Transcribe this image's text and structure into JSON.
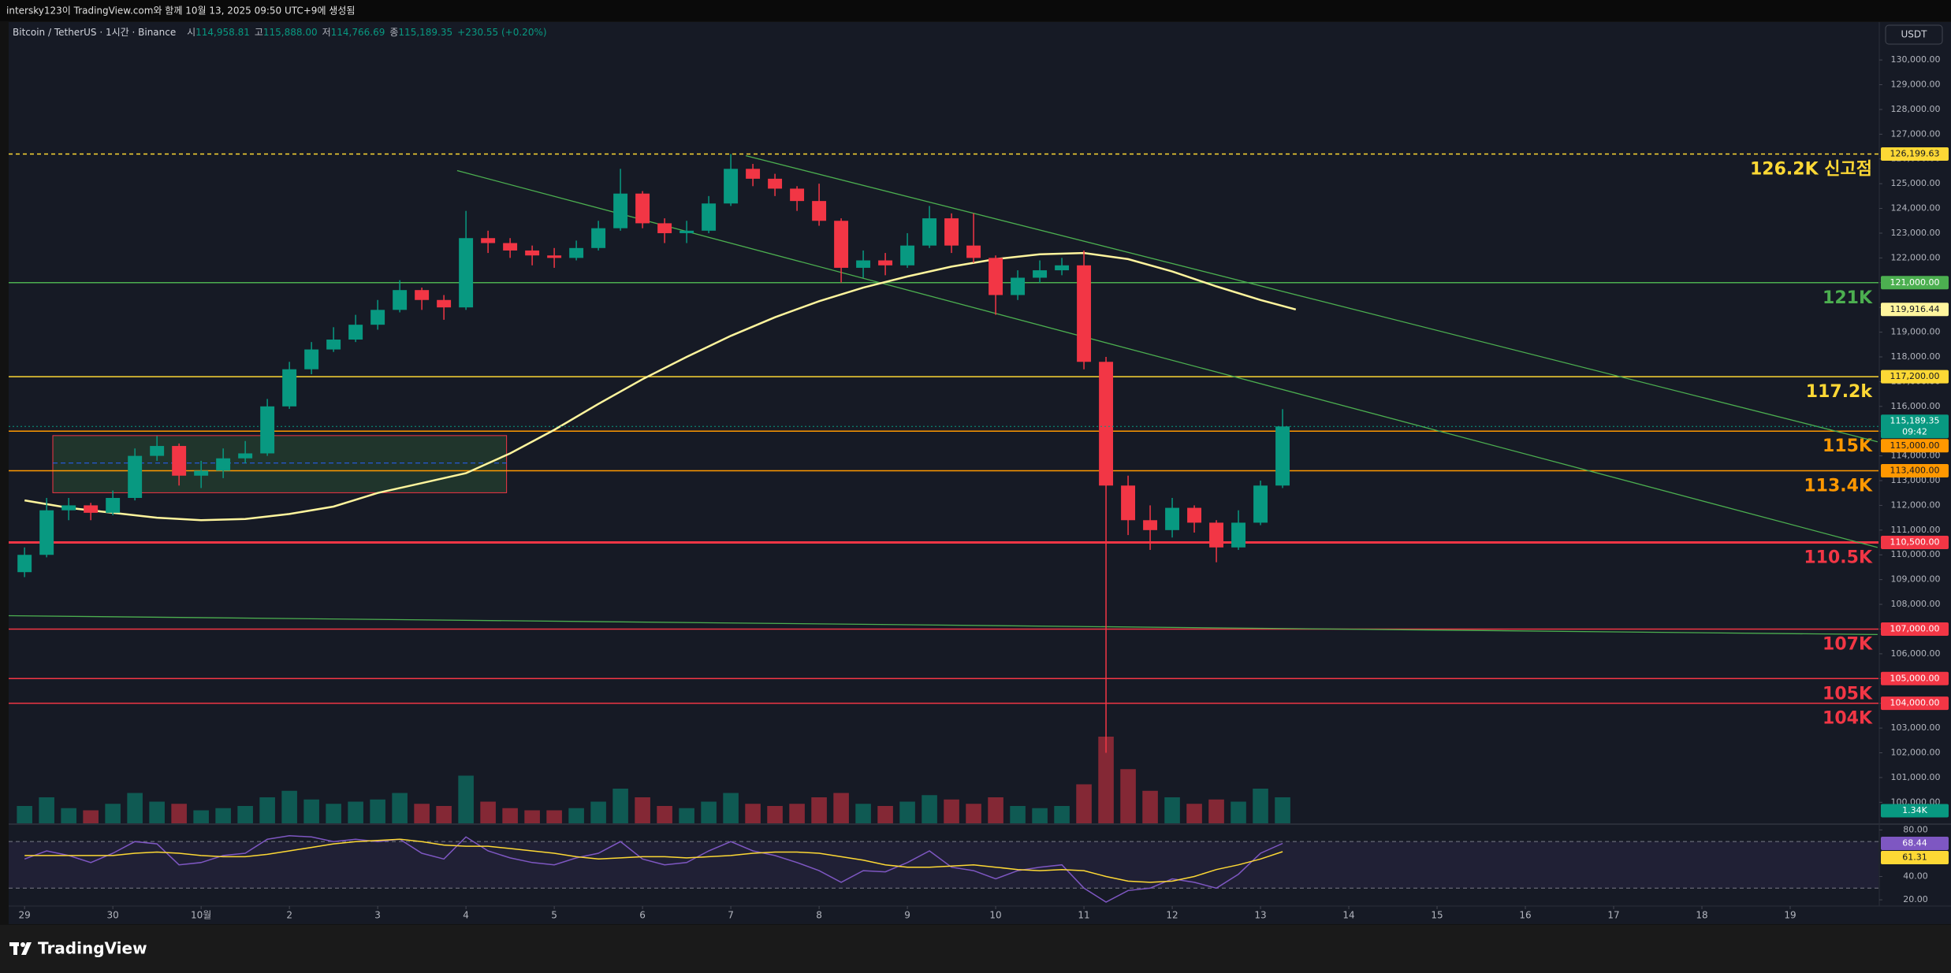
{
  "header": {
    "text": "intersky123이 TradingView.com와 함께 10월 13, 2025 09:50 UTC+9에 생성됨"
  },
  "footer": {
    "brand": "TradingView"
  },
  "chart_data": {
    "type": "candlestick",
    "title": "Bitcoin / TetherUS · 1시간 · Binance",
    "ohlc_legend": [
      {
        "key": "시",
        "value": "114,958.81"
      },
      {
        "key": "고",
        "value": "115,888.00"
      },
      {
        "key": "저",
        "value": "114,766.69"
      },
      {
        "key": "종",
        "value": "115,189.35"
      }
    ],
    "change": "+230.55 (+0.20%)",
    "currency": "USDT",
    "up_color": "#089981",
    "down_color": "#f23645",
    "x": [
      0,
      0.25,
      0.5,
      0.75,
      1,
      1.25,
      1.5,
      1.75,
      2,
      2.25,
      2.5,
      2.75,
      3,
      3.25,
      3.5,
      3.75,
      4,
      4.25,
      4.5,
      4.75,
      5,
      5.25,
      5.5,
      5.75,
      6,
      6.25,
      6.5,
      6.75,
      7,
      7.25,
      7.5,
      7.75,
      8,
      8.25,
      8.5,
      8.75,
      9,
      9.25,
      9.5,
      9.75,
      10,
      10.25,
      10.5,
      10.75,
      11,
      11.25,
      11.5,
      11.75,
      12,
      12.25,
      12.5,
      12.75,
      13,
      13.25,
      13.5,
      13.75,
      14,
      14.25
    ],
    "open": [
      109300,
      110000,
      111800,
      112000,
      111700,
      112300,
      114000,
      114400,
      113200,
      113400,
      113900,
      114100,
      116000,
      117500,
      118300,
      118700,
      119300,
      119900,
      120700,
      120300,
      120000,
      122800,
      122600,
      122300,
      122100,
      122000,
      122400,
      123200,
      124600,
      123400,
      123000,
      123100,
      124200,
      125600,
      125200,
      124800,
      124300,
      123500,
      121600,
      121900,
      121700,
      122500,
      123600,
      122500,
      122000,
      120500,
      121200,
      121500,
      121700,
      117800,
      112800,
      111400,
      111000,
      111900,
      111300,
      110300,
      111300,
      112800
    ],
    "high": [
      110300,
      112300,
      112300,
      112100,
      112600,
      114300,
      114800,
      114500,
      113800,
      114300,
      114600,
      116300,
      117800,
      118600,
      119200,
      119700,
      120300,
      121100,
      120800,
      120500,
      123900,
      123100,
      122800,
      122500,
      122400,
      122700,
      123500,
      125600,
      124700,
      123600,
      123500,
      124500,
      126199.63,
      125800,
      125400,
      124900,
      125000,
      123600,
      122300,
      122200,
      123000,
      124100,
      123800,
      123800,
      122100,
      121500,
      121900,
      122000,
      122300,
      118000,
      113200,
      112000,
      112300,
      112000,
      111400,
      111800,
      113000,
      115888
    ],
    "low": [
      109100,
      109900,
      111400,
      111400,
      111600,
      112200,
      113800,
      112800,
      112700,
      113100,
      113700,
      114000,
      115900,
      117300,
      118200,
      118600,
      119100,
      119800,
      119900,
      119500,
      119900,
      122200,
      122000,
      121700,
      121600,
      121900,
      122300,
      123100,
      123200,
      122600,
      122600,
      123000,
      124100,
      124900,
      124500,
      123900,
      123300,
      121000,
      121200,
      121300,
      121600,
      122400,
      122200,
      121800,
      119700,
      120300,
      121000,
      121300,
      117500,
      102000,
      110800,
      110200,
      110700,
      110900,
      109700,
      110200,
      111200,
      112700
    ],
    "close": [
      110000,
      111800,
      112000,
      111700,
      112300,
      114000,
      114400,
      113200,
      113400,
      113900,
      114100,
      116000,
      117500,
      118300,
      118700,
      119300,
      119900,
      120700,
      120300,
      120000,
      122800,
      122600,
      122300,
      122100,
      122000,
      122400,
      123200,
      124600,
      123400,
      123000,
      123100,
      124200,
      125600,
      125200,
      124800,
      124300,
      123500,
      121600,
      121900,
      121700,
      122500,
      123600,
      122500,
      122000,
      120500,
      121200,
      121500,
      121700,
      117800,
      112800,
      111400,
      111000,
      111900,
      111300,
      110300,
      111300,
      112800,
      115189.35
    ],
    "last_label": "115,189.35",
    "countdown": "09:42",
    "xlim": [
      -0.18,
      21
    ],
    "xticks": [
      {
        "value": 0,
        "label": "29"
      },
      {
        "value": 1,
        "label": "30"
      },
      {
        "value": 2,
        "label": "10월"
      },
      {
        "value": 3,
        "label": "2"
      },
      {
        "value": 4,
        "label": "3"
      },
      {
        "value": 5,
        "label": "4"
      },
      {
        "value": 6,
        "label": "5"
      },
      {
        "value": 7,
        "label": "6"
      },
      {
        "value": 8,
        "label": "7"
      },
      {
        "value": 9,
        "label": "8"
      },
      {
        "value": 10,
        "label": "9"
      },
      {
        "value": 11,
        "label": "10"
      },
      {
        "value": 12,
        "label": "11"
      },
      {
        "value": 13,
        "label": "12"
      },
      {
        "value": 14,
        "label": "13"
      },
      {
        "value": 15,
        "label": "14"
      },
      {
        "value": 16,
        "label": "15"
      },
      {
        "value": 17,
        "label": "16"
      },
      {
        "value": 18,
        "label": "17"
      },
      {
        "value": 19,
        "label": "18"
      },
      {
        "value": 20,
        "label": "19"
      }
    ],
    "ylim": [
      99150,
      131150
    ],
    "yticks": [
      {
        "value": 100000,
        "label": "100,000.00"
      },
      {
        "value": 101000,
        "label": "101,000.00"
      },
      {
        "value": 102000,
        "label": "102,000.00"
      },
      {
        "value": 103000,
        "label": "103,000.00"
      },
      {
        "value": 104000,
        "label": "104,000.00"
      },
      {
        "value": 105000,
        "label": "105,000.00"
      },
      {
        "value": 106000,
        "label": "106,000.00"
      },
      {
        "value": 107000,
        "label": "107,000.00"
      },
      {
        "value": 108000,
        "label": "108,000.00"
      },
      {
        "value": 109000,
        "label": "109,000.00"
      },
      {
        "value": 110000,
        "label": "110,000.00"
      },
      {
        "value": 111000,
        "label": "111,000.00"
      },
      {
        "value": 112000,
        "label": "112,000.00"
      },
      {
        "value": 113000,
        "label": "113,000.00"
      },
      {
        "value": 114000,
        "label": "114,000.00"
      },
      {
        "value": 115000,
        "label": "115,000.00"
      },
      {
        "value": 116000,
        "label": "116,000.00"
      },
      {
        "value": 117000,
        "label": "117,000.00"
      },
      {
        "value": 118000,
        "label": "118,000.00"
      },
      {
        "value": 119000,
        "label": "119,000.00"
      },
      {
        "value": 120000,
        "label": "120,000.00"
      },
      {
        "value": 121000,
        "label": "121,000.00"
      },
      {
        "value": 122000,
        "label": "122,000.00"
      },
      {
        "value": 123000,
        "label": "123,000.00"
      },
      {
        "value": 124000,
        "label": "124,000.00"
      },
      {
        "value": 125000,
        "label": "125,000.00"
      },
      {
        "value": 126000,
        "label": "126,000.00"
      },
      {
        "value": 127000,
        "label": "127,000.00"
      },
      {
        "value": 128000,
        "label": "128,000.00"
      },
      {
        "value": 129000,
        "label": "129,000.00"
      },
      {
        "value": 130000,
        "label": "130,000.00"
      }
    ],
    "levels": [
      {
        "value": 126199.63,
        "axis_label": "126,199.63",
        "text": "126.2K 신고점",
        "color": "#fdd835",
        "style": "dashed"
      },
      {
        "value": 121000,
        "axis_label": "121,000.00",
        "text": "121K",
        "color": "#4caf50",
        "style": "solid"
      },
      {
        "value": 117200,
        "axis_label": "117,200.00",
        "text": "117.2k",
        "color": "#fdd835",
        "style": "solid"
      },
      {
        "value": 115000,
        "axis_label": "115,000.00",
        "text": "115K",
        "color": "#ff9800",
        "style": "solid"
      },
      {
        "value": 113400,
        "axis_label": "113,400.00",
        "text": "113.4K",
        "color": "#ff9800",
        "style": "solid"
      },
      {
        "value": 110500,
        "axis_label": "110,500.00",
        "text": "110.5K",
        "color": "#f23645",
        "style": "thick"
      },
      {
        "value": 107000,
        "axis_label": "107,000.00",
        "text": "107K",
        "color": "#f23645",
        "style": "solid"
      },
      {
        "value": 105000,
        "axis_label": "105,000.00",
        "text": "105K",
        "color": "#f23645",
        "style": "solid"
      },
      {
        "value": 104000,
        "axis_label": "104,000.00",
        "text": "104K",
        "color": "#f23645",
        "style": "solid"
      }
    ],
    "trendlines": [
      {
        "x": [
          8.17,
          20.99
        ],
        "values": [
          126130,
          114570
        ],
        "color": "#4caf50"
      },
      {
        "x": [
          4.9,
          20.99
        ],
        "values": [
          125530,
          110300
        ],
        "color": "#4caf50"
      },
      {
        "x": [
          -0.18,
          20.99
        ],
        "values": [
          107540,
          106780
        ],
        "color": "#4caf50"
      }
    ],
    "box": {
      "x": [
        0.32,
        5.46
      ],
      "values": [
        112510,
        114820
      ],
      "mid": 113710,
      "color": "#f23645"
    },
    "ma": {
      "color": "#fff59d",
      "x": [
        0,
        0.5,
        1,
        1.5,
        2,
        2.5,
        3,
        3.5,
        4,
        4.5,
        5,
        5.5,
        6,
        6.5,
        7,
        7.5,
        8,
        8.5,
        9,
        9.5,
        10,
        10.5,
        11,
        11.5,
        12,
        12.5,
        13,
        13.5,
        14,
        14.4
      ],
      "values": [
        112200,
        111900,
        111700,
        111500,
        111400,
        111450,
        111650,
        111950,
        112500,
        112900,
        113300,
        114100,
        115050,
        116100,
        117100,
        118000,
        118850,
        119600,
        120250,
        120800,
        121250,
        121650,
        121950,
        122150,
        122200,
        121950,
        121450,
        120850,
        120300,
        119916.44
      ],
      "last_label": "119,916.44"
    },
    "volume": {
      "values": [
        8,
        12,
        7,
        6,
        9,
        14,
        10,
        9,
        6,
        7,
        8,
        12,
        15,
        11,
        9,
        10,
        11,
        14,
        9,
        8,
        22,
        10,
        7,
        6,
        6,
        7,
        10,
        16,
        12,
        8,
        7,
        10,
        14,
        9,
        8,
        9,
        12,
        14,
        9,
        8,
        10,
        13,
        11,
        9,
        12,
        8,
        7,
        8,
        18,
        40,
        25,
        15,
        12,
        9,
        11,
        10,
        16,
        12
      ],
      "ylim": [
        0,
        40
      ],
      "label": "1.34K"
    },
    "rsi": {
      "color": "#7e57c2",
      "ma_color": "#fdd835",
      "values": [
        55,
        62,
        58,
        52,
        60,
        70,
        68,
        50,
        52,
        58,
        60,
        72,
        75,
        74,
        70,
        72,
        70,
        72,
        60,
        55,
        74,
        62,
        56,
        52,
        50,
        56,
        60,
        70,
        55,
        50,
        52,
        62,
        70,
        62,
        58,
        52,
        45,
        35,
        45,
        44,
        52,
        62,
        48,
        45,
        38,
        45,
        48,
        50,
        30,
        18,
        28,
        30,
        38,
        35,
        30,
        42,
        60,
        68.44
      ],
      "ma": [
        58,
        58,
        58,
        58,
        58,
        60,
        61,
        60,
        58,
        57,
        57,
        59,
        62,
        65,
        68,
        70,
        71,
        72,
        70,
        67,
        66,
        66,
        64,
        62,
        60,
        57,
        55,
        56,
        57,
        57,
        56,
        57,
        58,
        60,
        61,
        61,
        60,
        57,
        54,
        50,
        48,
        48,
        49,
        50,
        48,
        46,
        45,
        46,
        45,
        40,
        36,
        35,
        36,
        40,
        46,
        50,
        55,
        61.31
      ],
      "ylim": [
        16,
        85
      ],
      "band": [
        30,
        70
      ],
      "yticks": [
        {
          "value": 80,
          "label": "80.00"
        },
        {
          "value": 40,
          "label": "40.00"
        },
        {
          "value": 20,
          "label": "20.00"
        }
      ]
    }
  }
}
